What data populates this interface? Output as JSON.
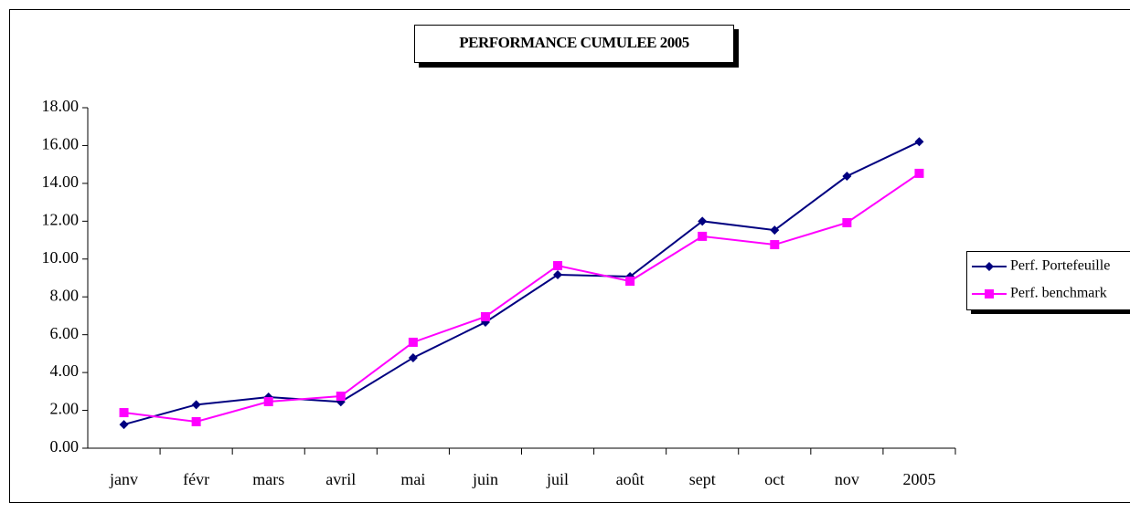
{
  "chart_data": {
    "type": "line",
    "title": "PERFORMANCE CUMULEE  2005",
    "categories": [
      "janv",
      "févr",
      "mars",
      "avril",
      "mai",
      "juin",
      "juil",
      "août",
      "sept",
      "oct",
      "nov",
      "2005"
    ],
    "series": [
      {
        "name": "Perf. Portefeuille",
        "color": "#000080",
        "marker": "diamond",
        "values": [
          1.25,
          2.3,
          2.7,
          2.45,
          4.78,
          6.66,
          9.17,
          9.07,
          12.0,
          11.53,
          14.38,
          16.2
        ]
      },
      {
        "name": "Perf. benchmark",
        "color": "#ff00ff",
        "marker": "square",
        "values": [
          1.88,
          1.4,
          2.46,
          2.75,
          5.6,
          6.95,
          9.65,
          8.83,
          11.2,
          10.76,
          11.92,
          14.53
        ]
      }
    ],
    "ylim": [
      0,
      18
    ],
    "yticks": [
      {
        "value": 0,
        "label": "0.00"
      },
      {
        "value": 2,
        "label": "2.00"
      },
      {
        "value": 4,
        "label": "4.00"
      },
      {
        "value": 6,
        "label": "6.00"
      },
      {
        "value": 8,
        "label": "8.00"
      },
      {
        "value": 10,
        "label": "10.00"
      },
      {
        "value": 12,
        "label": "12.00"
      },
      {
        "value": 14,
        "label": "14.00"
      },
      {
        "value": 16,
        "label": "16.00"
      },
      {
        "value": 18,
        "label": "18.00"
      }
    ],
    "grid": false,
    "legend": "right"
  }
}
